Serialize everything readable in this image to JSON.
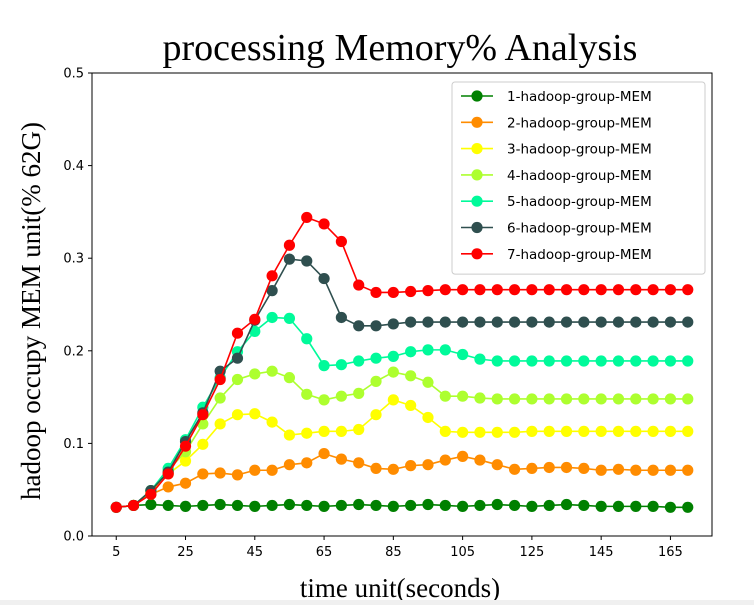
{
  "chart_data": {
    "type": "line",
    "title": "processing Memory% Analysis",
    "xlabel": "time unit(seconds)",
    "ylabel": "hadoop occupy MEM unit(% 62G)",
    "xlim": [
      -2,
      177
    ],
    "ylim": [
      0.0,
      0.5
    ],
    "xticks": [
      5,
      25,
      45,
      65,
      85,
      105,
      125,
      145,
      165
    ],
    "yticks": [
      0.0,
      0.1,
      0.2,
      0.3,
      0.4,
      0.5
    ],
    "ytick_labels": [
      "0.0",
      "0.1",
      "0.2",
      "0.3",
      "0.4",
      "0.5"
    ],
    "grid": false,
    "legend_position": "top-right",
    "x": [
      5,
      10,
      15,
      20,
      25,
      30,
      35,
      40,
      45,
      50,
      55,
      60,
      65,
      70,
      75,
      80,
      85,
      90,
      95,
      100,
      105,
      110,
      115,
      120,
      125,
      130,
      135,
      140,
      145,
      150,
      155,
      160,
      165,
      170
    ],
    "series": [
      {
        "name": "1-hadoop-group-MEM",
        "color": "#008000",
        "values": [
          0.031,
          0.033,
          0.034,
          0.033,
          0.032,
          0.033,
          0.034,
          0.033,
          0.032,
          0.033,
          0.034,
          0.033,
          0.032,
          0.033,
          0.034,
          0.033,
          0.032,
          0.033,
          0.034,
          0.033,
          0.032,
          0.033,
          0.034,
          0.033,
          0.032,
          0.033,
          0.034,
          0.033,
          0.032,
          0.032,
          0.032,
          0.032,
          0.031,
          0.031
        ]
      },
      {
        "name": "2-hadoop-group-MEM",
        "color": "#ff8c00",
        "values": [
          0.031,
          0.033,
          0.045,
          0.053,
          0.057,
          0.067,
          0.068,
          0.066,
          0.071,
          0.071,
          0.077,
          0.079,
          0.089,
          0.083,
          0.079,
          0.073,
          0.072,
          0.076,
          0.077,
          0.082,
          0.086,
          0.082,
          0.077,
          0.072,
          0.073,
          0.074,
          0.074,
          0.073,
          0.071,
          0.072,
          0.071,
          0.071,
          0.071,
          0.071
        ]
      },
      {
        "name": "3-hadoop-group-MEM",
        "color": "#ffff00",
        "values": [
          0.031,
          0.033,
          0.047,
          0.067,
          0.081,
          0.099,
          0.121,
          0.131,
          0.132,
          0.123,
          0.109,
          0.111,
          0.113,
          0.113,
          0.115,
          0.131,
          0.147,
          0.141,
          0.128,
          0.113,
          0.112,
          0.112,
          0.112,
          0.112,
          0.113,
          0.113,
          0.113,
          0.113,
          0.113,
          0.113,
          0.113,
          0.113,
          0.113,
          0.113
        ]
      },
      {
        "name": "4-hadoop-group-MEM",
        "color": "#adff2f",
        "values": [
          0.031,
          0.033,
          0.049,
          0.071,
          0.091,
          0.121,
          0.149,
          0.169,
          0.175,
          0.178,
          0.171,
          0.153,
          0.147,
          0.151,
          0.154,
          0.167,
          0.177,
          0.173,
          0.166,
          0.151,
          0.151,
          0.149,
          0.148,
          0.148,
          0.148,
          0.148,
          0.148,
          0.148,
          0.148,
          0.148,
          0.148,
          0.148,
          0.148,
          0.148
        ]
      },
      {
        "name": "5-hadoop-group-MEM",
        "color": "#00fa9a",
        "values": [
          0.031,
          0.033,
          0.049,
          0.073,
          0.104,
          0.139,
          0.171,
          0.199,
          0.221,
          0.236,
          0.235,
          0.213,
          0.184,
          0.185,
          0.189,
          0.192,
          0.194,
          0.199,
          0.201,
          0.201,
          0.196,
          0.191,
          0.189,
          0.189,
          0.189,
          0.189,
          0.189,
          0.189,
          0.189,
          0.189,
          0.189,
          0.189,
          0.189,
          0.189
        ]
      },
      {
        "name": "6-hadoop-group-MEM",
        "color": "#2f4f4f",
        "values": [
          0.031,
          0.033,
          0.049,
          0.069,
          0.102,
          0.133,
          0.178,
          0.192,
          0.233,
          0.265,
          0.299,
          0.297,
          0.278,
          0.236,
          0.227,
          0.227,
          0.229,
          0.231,
          0.231,
          0.231,
          0.231,
          0.231,
          0.231,
          0.231,
          0.231,
          0.231,
          0.231,
          0.231,
          0.231,
          0.231,
          0.231,
          0.231,
          0.231,
          0.231
        ]
      },
      {
        "name": "7-hadoop-group-MEM",
        "color": "#ff0000",
        "values": [
          0.031,
          0.033,
          0.045,
          0.067,
          0.097,
          0.131,
          0.169,
          0.219,
          0.234,
          0.281,
          0.314,
          0.344,
          0.337,
          0.318,
          0.271,
          0.263,
          0.263,
          0.264,
          0.265,
          0.266,
          0.266,
          0.266,
          0.266,
          0.266,
          0.266,
          0.266,
          0.266,
          0.266,
          0.266,
          0.266,
          0.266,
          0.266,
          0.266,
          0.266
        ]
      }
    ]
  }
}
